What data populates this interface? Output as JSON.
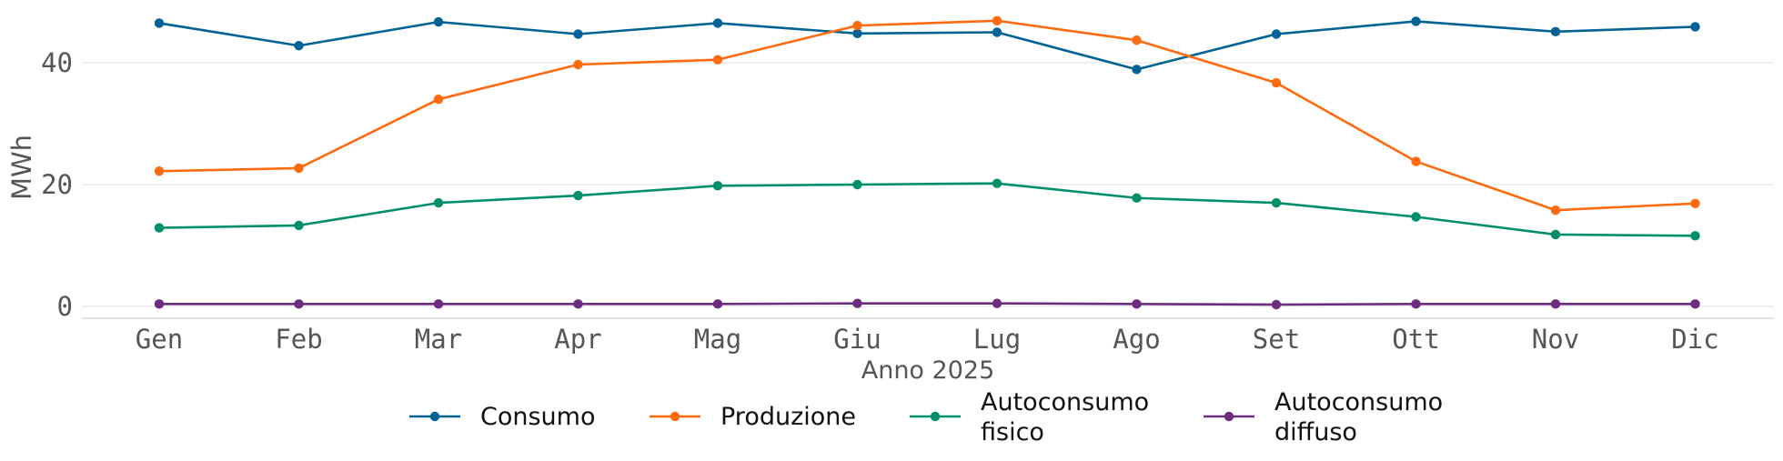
{
  "chart_data": {
    "type": "line",
    "xlabel": "Anno 2025",
    "ylabel": "MWh",
    "categories": [
      "Gen",
      "Feb",
      "Mar",
      "Apr",
      "Mag",
      "Giu",
      "Lug",
      "Ago",
      "Set",
      "Ott",
      "Nov",
      "Dic"
    ],
    "yticks": [
      "0",
      "20",
      "40"
    ],
    "ylim": [
      -2,
      48
    ],
    "grid": "horizontal",
    "legend_placement": "bottom-center",
    "series": [
      {
        "name": "Consumo",
        "color": "#006295",
        "values": [
          46.5,
          42.8,
          46.7,
          44.7,
          46.5,
          44.8,
          45.0,
          38.9,
          44.7,
          46.8,
          45.1,
          45.9
        ]
      },
      {
        "name": "Produzione",
        "color": "#ff6a0e",
        "values": [
          22.2,
          22.7,
          34.0,
          39.7,
          40.5,
          46.1,
          46.9,
          43.7,
          36.7,
          23.8,
          15.8,
          16.9
        ]
      },
      {
        "name": "Autoconsumo fisico",
        "color": "#008f6a",
        "values": [
          12.9,
          13.3,
          17.0,
          18.2,
          19.8,
          20.0,
          20.2,
          17.8,
          17.0,
          14.7,
          11.8,
          11.6
        ]
      },
      {
        "name": "Autoconsumo diffuso",
        "color": "#6e2c80",
        "values": [
          0.4,
          0.4,
          0.4,
          0.4,
          0.4,
          0.5,
          0.5,
          0.4,
          0.3,
          0.4,
          0.4,
          0.4
        ]
      }
    ],
    "legend": [
      {
        "lines": [
          "Consumo"
        ]
      },
      {
        "lines": [
          "Produzione"
        ]
      },
      {
        "lines": [
          "Autoconsumo",
          "fisico"
        ]
      },
      {
        "lines": [
          "Autoconsumo",
          "diffuso"
        ]
      }
    ]
  }
}
